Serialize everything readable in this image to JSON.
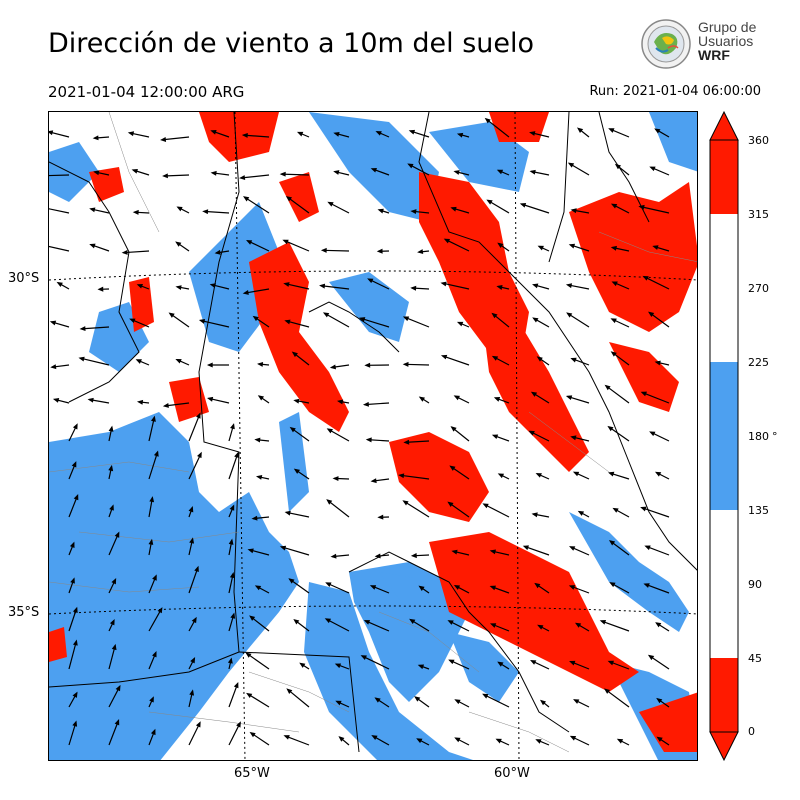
{
  "title": "Dirección de viento a 10m del suelo",
  "valid_time": "2021-01-04 12:00:00 ARG",
  "run_time": "Run: 2021-01-04 06:00:00",
  "logo": {
    "line1": "Grupo de",
    "line2": "Usuarios",
    "line3": "WRF",
    "icon": "wrf-globe-logo"
  },
  "map": {
    "latitude_labels": [
      "30°S",
      "35°S"
    ],
    "longitude_labels": [
      "65°W",
      "60°W"
    ],
    "colors": {
      "red": "#ff1a00",
      "blue": "#4da0f0",
      "white": "#ffffff"
    }
  },
  "colorbar": {
    "ticks": [
      "360",
      "315",
      "270",
      "225",
      "180",
      "135",
      "90",
      "45",
      "0"
    ],
    "unit": "°",
    "bins": [
      {
        "from": 0,
        "to": 45,
        "color": "#ff1a00"
      },
      {
        "from": 45,
        "to": 135,
        "color": "#ffffff"
      },
      {
        "from": 135,
        "to": 225,
        "color": "#4da0f0"
      },
      {
        "from": 225,
        "to": 315,
        "color": "#ffffff"
      },
      {
        "from": 315,
        "to": 360,
        "color": "#ff1a00"
      }
    ]
  }
}
